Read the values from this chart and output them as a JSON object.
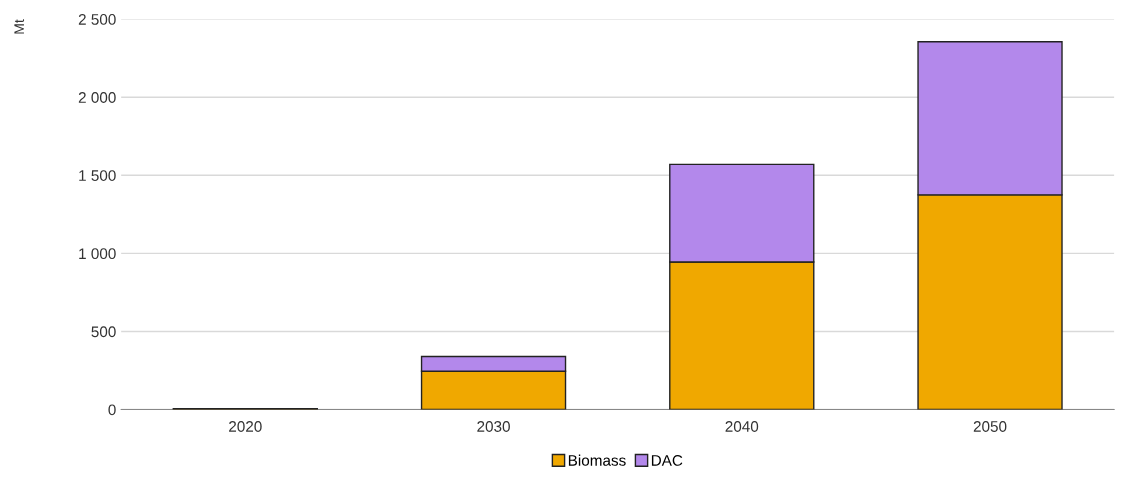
{
  "chart_data": {
    "type": "bar",
    "stacked": true,
    "ylabel": "Mt",
    "categories": [
      "2020",
      "2030",
      "2040",
      "2050"
    ],
    "series": [
      {
        "name": "Biomass",
        "color": "#f0a800",
        "values": [
          6,
          245,
          945,
          1375
        ]
      },
      {
        "name": "DAC",
        "color": "#b388eb",
        "values": [
          null,
          95,
          625,
          980
        ]
      }
    ],
    "ylim": [
      0,
      2500
    ],
    "yticks": [
      0,
      500,
      {
        "value": 1000,
        "label": "1 000"
      },
      {
        "value": 1500,
        "label": "1 500"
      },
      {
        "value": 2000,
        "label": "2 000"
      },
      {
        "value": 2500,
        "label": "2 500"
      }
    ],
    "grid": "y",
    "legend": "bottom"
  }
}
